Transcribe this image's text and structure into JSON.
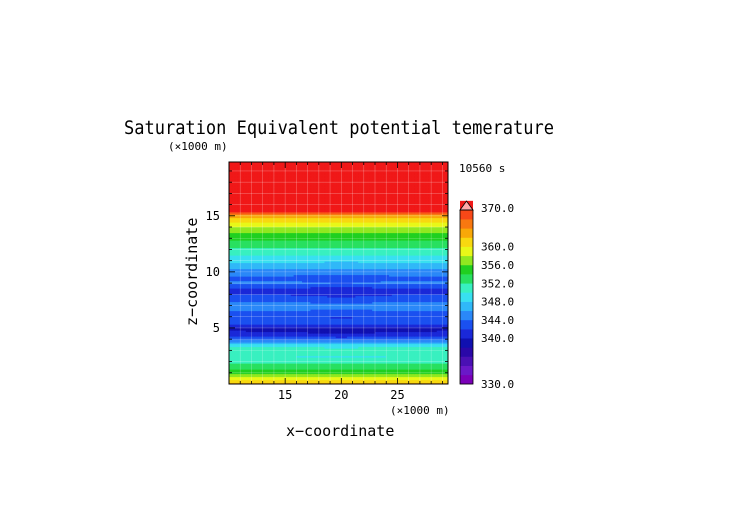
{
  "chart_data": {
    "type": "heatmap",
    "title": "Saturation Equivalent potential temerature",
    "time_label": "10560 s",
    "xlabel": "x−coordinate",
    "ylabel": "z−coordinate",
    "x_unit": "(×1000 m)",
    "y_unit": "(×1000 m)",
    "xlim": [
      10,
      29.5
    ],
    "ylim": [
      0,
      19.8
    ],
    "x_ticks": [
      15,
      20,
      25
    ],
    "y_ticks": [
      5,
      10,
      15
    ],
    "grid": true,
    "colorbar": {
      "levels": [
        330,
        332,
        334,
        336,
        338,
        340,
        342,
        344,
        346,
        348,
        350,
        352,
        354,
        356,
        358,
        360,
        362,
        364,
        366,
        368,
        370
      ],
      "colors": [
        "#7a00b8",
        "#6a18c8",
        "#4a10b4",
        "#2a08a8",
        "#1010b0",
        "#1a28d8",
        "#1a50f0",
        "#2a88f8",
        "#30b8f8",
        "#38e0f0",
        "#38f0c0",
        "#28e060",
        "#20d020",
        "#90e820",
        "#e8f818",
        "#f8d810",
        "#f8a808",
        "#f87810",
        "#f84818",
        "#f01818",
        "#ffa8a8"
      ],
      "tick_labels": [
        "370.0",
        "360.0",
        "356.0",
        "352.0",
        "348.0",
        "344.0",
        "340.0",
        "330.0"
      ],
      "tick_values": [
        370,
        360,
        356,
        352,
        348,
        344,
        340,
        330
      ]
    },
    "profile": [
      {
        "z": 0.0,
        "theta": 363
      },
      {
        "z": 0.4,
        "theta": 360
      },
      {
        "z": 0.8,
        "theta": 357
      },
      {
        "z": 1.2,
        "theta": 355
      },
      {
        "z": 1.6,
        "theta": 353
      },
      {
        "z": 2.0,
        "theta": 351.5
      },
      {
        "z": 2.5,
        "theta": 350
      },
      {
        "z": 3.0,
        "theta": 352
      },
      {
        "z": 3.5,
        "theta": 349
      },
      {
        "z": 4.0,
        "theta": 344
      },
      {
        "z": 4.5,
        "theta": 340.5
      },
      {
        "z": 5.0,
        "theta": 339.5
      },
      {
        "z": 5.5,
        "theta": 343.5
      },
      {
        "z": 6.0,
        "theta": 342.5
      },
      {
        "z": 6.5,
        "theta": 344
      },
      {
        "z": 7.0,
        "theta": 345.5
      },
      {
        "z": 7.5,
        "theta": 343.5
      },
      {
        "z": 8.0,
        "theta": 342
      },
      {
        "z": 8.5,
        "theta": 341.5
      },
      {
        "z": 9.0,
        "theta": 344.5
      },
      {
        "z": 9.5,
        "theta": 343.5
      },
      {
        "z": 10.0,
        "theta": 345
      },
      {
        "z": 10.5,
        "theta": 347
      },
      {
        "z": 11.0,
        "theta": 348.5
      },
      {
        "z": 11.5,
        "theta": 350
      },
      {
        "z": 12.0,
        "theta": 351.5
      },
      {
        "z": 12.5,
        "theta": 353
      },
      {
        "z": 13.0,
        "theta": 354.5
      },
      {
        "z": 13.5,
        "theta": 356
      },
      {
        "z": 14.0,
        "theta": 357.5
      },
      {
        "z": 14.5,
        "theta": 360
      },
      {
        "z": 15.0,
        "theta": 363
      },
      {
        "z": 15.4,
        "theta": 368
      },
      {
        "z": 15.8,
        "theta": 370
      },
      {
        "z": 19.8,
        "theta": 370
      }
    ]
  }
}
